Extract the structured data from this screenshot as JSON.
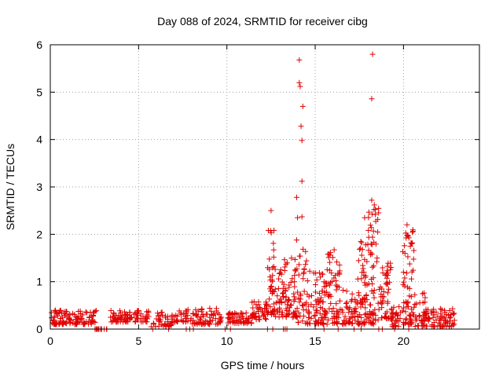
{
  "chart_data": {
    "type": "scatter",
    "title": "Day 088 of 2024, SRMTID for receiver cibg",
    "xlabel": "GPS time / hours",
    "ylabel": "SRMTID / TECUs",
    "xlim": [
      0,
      24.3
    ],
    "ylim": [
      0,
      6
    ],
    "xticks": [
      0,
      5,
      10,
      15,
      20
    ],
    "yticks": [
      0,
      1,
      2,
      3,
      4,
      5,
      6
    ],
    "grid": true,
    "marker": "+",
    "color": "#e00000",
    "notable_points": [
      {
        "x": 14.1,
        "y": 5.68
      },
      {
        "x": 14.1,
        "y": 5.2
      },
      {
        "x": 14.15,
        "y": 5.12
      },
      {
        "x": 14.3,
        "y": 4.7
      },
      {
        "x": 14.2,
        "y": 4.28
      },
      {
        "x": 14.25,
        "y": 3.98
      },
      {
        "x": 14.25,
        "y": 3.12
      },
      {
        "x": 13.95,
        "y": 2.78
      },
      {
        "x": 14.0,
        "y": 2.35
      },
      {
        "x": 14.25,
        "y": 2.37
      },
      {
        "x": 13.95,
        "y": 1.88
      },
      {
        "x": 18.25,
        "y": 5.8
      },
      {
        "x": 18.2,
        "y": 4.86
      },
      {
        "x": 18.2,
        "y": 2.72
      },
      {
        "x": 18.35,
        "y": 2.62
      },
      {
        "x": 12.5,
        "y": 2.5
      },
      {
        "x": 17.8,
        "y": 2.35
      },
      {
        "x": 20.2,
        "y": 2.2
      }
    ],
    "clusters": [
      {
        "x0": 0.0,
        "x1": 2.6,
        "n": 110,
        "ylo": 0.1,
        "yhi": 0.4
      },
      {
        "x0": 2.5,
        "x1": 3.3,
        "n": 8,
        "ylo": 0.0,
        "yhi": 0.0
      },
      {
        "x0": 3.4,
        "x1": 5.6,
        "n": 80,
        "ylo": 0.15,
        "yhi": 0.4
      },
      {
        "x0": 5.7,
        "x1": 6.9,
        "n": 40,
        "ylo": 0.05,
        "yhi": 0.38
      },
      {
        "x0": 6.9,
        "x1": 7.8,
        "n": 30,
        "ylo": 0.15,
        "yhi": 0.45
      },
      {
        "x0": 7.9,
        "x1": 9.7,
        "n": 70,
        "ylo": 0.1,
        "yhi": 0.45
      },
      {
        "x0": 10.0,
        "x1": 11.5,
        "n": 60,
        "ylo": 0.12,
        "yhi": 0.35
      },
      {
        "x0": 11.4,
        "x1": 12.3,
        "n": 40,
        "ylo": 0.2,
        "yhi": 0.6
      },
      {
        "x0": 12.3,
        "x1": 12.7,
        "n": 40,
        "ylo": 0.3,
        "yhi": 2.3
      },
      {
        "x0": 12.7,
        "x1": 14.0,
        "n": 90,
        "ylo": 0.25,
        "yhi": 1.5
      },
      {
        "x0": 14.0,
        "x1": 14.8,
        "n": 50,
        "ylo": 0.1,
        "yhi": 1.7
      },
      {
        "x0": 14.9,
        "x1": 15.6,
        "n": 60,
        "ylo": 0.1,
        "yhi": 1.2
      },
      {
        "x0": 15.6,
        "x1": 16.6,
        "n": 70,
        "ylo": 0.1,
        "yhi": 1.7
      },
      {
        "x0": 16.6,
        "x1": 17.4,
        "n": 40,
        "ylo": 0.1,
        "yhi": 0.8
      },
      {
        "x0": 17.4,
        "x1": 18.0,
        "n": 60,
        "ylo": 0.1,
        "yhi": 2.0
      },
      {
        "x0": 18.0,
        "x1": 18.6,
        "n": 60,
        "ylo": 0.1,
        "yhi": 2.6
      },
      {
        "x0": 18.6,
        "x1": 19.3,
        "n": 50,
        "ylo": 0.2,
        "yhi": 1.4
      },
      {
        "x0": 19.3,
        "x1": 19.9,
        "n": 30,
        "ylo": 0.05,
        "yhi": 0.5
      },
      {
        "x0": 19.9,
        "x1": 20.6,
        "n": 70,
        "ylo": 0.1,
        "yhi": 2.1
      },
      {
        "x0": 20.6,
        "x1": 21.3,
        "n": 40,
        "ylo": 0.05,
        "yhi": 0.8
      },
      {
        "x0": 21.3,
        "x1": 22.9,
        "n": 70,
        "ylo": 0.05,
        "yhi": 0.45
      }
    ],
    "zero_points": [
      2.6,
      2.75,
      2.9,
      3.05,
      3.2,
      5.8,
      6.7,
      7.7,
      7.9,
      8.1,
      9.9,
      10.2,
      12.3,
      12.6,
      13.2,
      13.3,
      13.4,
      15.5,
      16.3,
      17.2,
      17.6,
      18.6,
      18.8,
      19.5,
      20.3
    ]
  }
}
